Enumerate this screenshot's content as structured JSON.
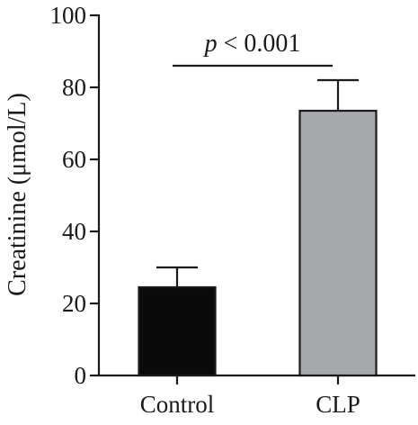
{
  "chart_data": {
    "type": "bar",
    "title": "",
    "xlabel": "",
    "ylabel": "Creatinine (μmol/L)",
    "ylim": [
      0,
      100
    ],
    "yticks": [
      0,
      20,
      40,
      60,
      80,
      100
    ],
    "categories": [
      "Control",
      "CLP"
    ],
    "values": [
      24.5,
      73.5
    ],
    "errors": [
      5.5,
      8.5
    ],
    "bar_colors": [
      "#0a0a0a",
      "#a7a9ac"
    ],
    "annotation": {
      "text_italic": "p",
      "text_rest": " < 0.001",
      "between": [
        0,
        1
      ],
      "y": 86
    },
    "grid": false,
    "legend": "none"
  }
}
